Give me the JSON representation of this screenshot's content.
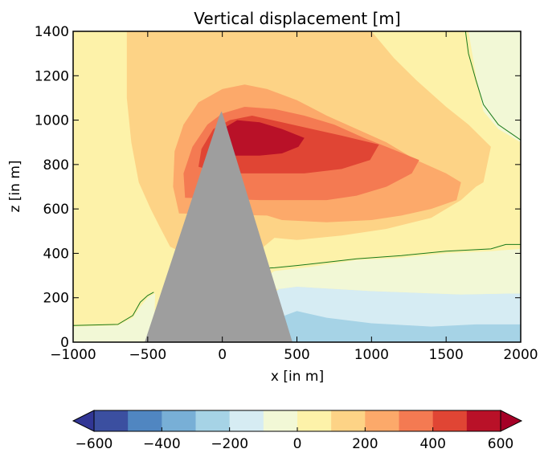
{
  "chart_data": {
    "type": "heatmap",
    "title": "Vertical displacement [m]",
    "xlabel": "x [in m]",
    "ylabel": "z [in m]",
    "xlim": [
      -1000,
      2000
    ],
    "ylim": [
      0,
      1400
    ],
    "xticks": [
      -1000,
      -500,
      0,
      500,
      1000,
      1500,
      2000
    ],
    "xtick_labels": [
      "−1000",
      "−500",
      "0",
      "500",
      "1000",
      "1500",
      "2000"
    ],
    "yticks": [
      0,
      200,
      400,
      600,
      800,
      1000,
      1200,
      1400
    ],
    "ytick_labels": [
      "0",
      "200",
      "400",
      "600",
      "800",
      "1000",
      "1200",
      "1400"
    ],
    "colorbar": {
      "levels": [
        -600,
        -500,
        -400,
        -300,
        -200,
        -100,
        0,
        100,
        200,
        300,
        400,
        500,
        600
      ],
      "colors": [
        "#3b4fa0",
        "#5086c1",
        "#78afd6",
        "#a6d3e6",
        "#d6ecf3",
        "#f2f8d6",
        "#fdf2a9",
        "#fdd386",
        "#fca96a",
        "#f47a52",
        "#e04534",
        "#b91128"
      ],
      "extend_low_color": "#313695",
      "extend_high_color": "#a50026",
      "tick_values": [
        -600,
        -400,
        -200,
        0,
        200,
        400,
        600
      ],
      "tick_labels": [
        "−600",
        "−400",
        "−200",
        "0",
        "200",
        "400",
        "600"
      ],
      "extend": "both"
    },
    "background_level_color": "#fdf2a9",
    "regions": [
      {
        "level_range": [
          -200,
          -100
        ],
        "color": "#d6ecf3",
        "polygon": [
          [
            -1000,
            0
          ],
          [
            2000,
            0
          ],
          [
            2000,
            220
          ],
          [
            1600,
            215
          ],
          [
            1000,
            230
          ],
          [
            500,
            250
          ],
          [
            380,
            240
          ],
          [
            300,
            200
          ],
          [
            300,
            0
          ]
        ]
      },
      {
        "level_range": [
          -300,
          -200
        ],
        "color": "#a6d3e6",
        "polygon": [
          [
            360,
            0
          ],
          [
            2000,
            0
          ],
          [
            2000,
            80
          ],
          [
            1700,
            80
          ],
          [
            1400,
            70
          ],
          [
            1000,
            85
          ],
          [
            700,
            110
          ],
          [
            500,
            140
          ],
          [
            420,
            120
          ],
          [
            360,
            60
          ]
        ]
      },
      {
        "level_range": [
          -100,
          0
        ],
        "color": "#f2f8d6",
        "polygon": [
          [
            -1000,
            0
          ],
          [
            -1000,
            70
          ],
          [
            -700,
            75
          ],
          [
            -600,
            110
          ],
          [
            -550,
            160
          ],
          [
            -500,
            200
          ],
          [
            -450,
            220
          ],
          [
            -460,
            0
          ]
        ]
      },
      {
        "level_range": [
          -100,
          0
        ],
        "color": "#f2f8d6",
        "polygon": [
          [
            2000,
            0
          ],
          [
            2000,
            420
          ],
          [
            1800,
            410
          ],
          [
            1500,
            400
          ],
          [
            1200,
            380
          ],
          [
            900,
            370
          ],
          [
            600,
            340
          ],
          [
            350,
            320
          ],
          [
            260,
            280
          ],
          [
            300,
            240
          ],
          [
            380,
            240
          ],
          [
            500,
            250
          ],
          [
            1000,
            230
          ],
          [
            1600,
            215
          ],
          [
            2000,
            220
          ]
        ]
      },
      {
        "level_range": [
          -100,
          0
        ],
        "color": "#f2f8d6",
        "polygon": [
          [
            1650,
            1400
          ],
          [
            2000,
            1400
          ],
          [
            2000,
            900
          ],
          [
            1850,
            960
          ],
          [
            1750,
            1040
          ],
          [
            1700,
            1200
          ]
        ]
      },
      {
        "level_range": [
          100,
          200
        ],
        "color": "#fdd386",
        "polygon": [
          [
            -640,
            1400
          ],
          [
            1000,
            1400
          ],
          [
            1150,
            1280
          ],
          [
            1300,
            1180
          ],
          [
            1500,
            1060
          ],
          [
            1650,
            980
          ],
          [
            1800,
            880
          ],
          [
            1750,
            720
          ],
          [
            1700,
            700
          ],
          [
            1600,
            640
          ],
          [
            1400,
            560
          ],
          [
            1100,
            510
          ],
          [
            800,
            480
          ],
          [
            500,
            460
          ],
          [
            350,
            470
          ],
          [
            260,
            420
          ],
          [
            200,
            380
          ],
          [
            150,
            360
          ],
          [
            -200,
            380
          ],
          [
            -350,
            430
          ],
          [
            -420,
            520
          ],
          [
            -480,
            600
          ],
          [
            -560,
            720
          ],
          [
            -610,
            900
          ],
          [
            -640,
            1100
          ]
        ]
      },
      {
        "level_range": [
          200,
          300
        ],
        "color": "#fca96a",
        "polygon": [
          [
            -290,
            580
          ],
          [
            -330,
            700
          ],
          [
            -320,
            860
          ],
          [
            -260,
            980
          ],
          [
            -160,
            1080
          ],
          [
            0,
            1140
          ],
          [
            150,
            1160
          ],
          [
            300,
            1140
          ],
          [
            500,
            1090
          ],
          [
            700,
            1020
          ],
          [
            900,
            960
          ],
          [
            1100,
            900
          ],
          [
            1300,
            820
          ],
          [
            1500,
            760
          ],
          [
            1600,
            720
          ],
          [
            1570,
            640
          ],
          [
            1400,
            600
          ],
          [
            1200,
            570
          ],
          [
            1000,
            550
          ],
          [
            700,
            540
          ],
          [
            400,
            550
          ],
          [
            300,
            570
          ]
        ]
      },
      {
        "level_range": [
          300,
          400
        ],
        "color": "#f47a52",
        "polygon": [
          [
            -250,
            650
          ],
          [
            -260,
            760
          ],
          [
            -200,
            880
          ],
          [
            -100,
            980
          ],
          [
            0,
            1030
          ],
          [
            150,
            1060
          ],
          [
            350,
            1050
          ],
          [
            550,
            1020
          ],
          [
            750,
            980
          ],
          [
            950,
            920
          ],
          [
            1100,
            880
          ],
          [
            1320,
            820
          ],
          [
            1270,
            760
          ],
          [
            1100,
            700
          ],
          [
            900,
            660
          ],
          [
            700,
            640
          ],
          [
            500,
            640
          ],
          [
            250,
            640
          ]
        ]
      },
      {
        "level_range": [
          400,
          500
        ],
        "color": "#e04534",
        "polygon": [
          [
            -160,
            790
          ],
          [
            -140,
            870
          ],
          [
            -60,
            960
          ],
          [
            50,
            1000
          ],
          [
            200,
            1020
          ],
          [
            400,
            990
          ],
          [
            600,
            960
          ],
          [
            800,
            930
          ],
          [
            1050,
            890
          ],
          [
            990,
            820
          ],
          [
            800,
            780
          ],
          [
            550,
            760
          ],
          [
            250,
            760
          ],
          [
            0,
            760
          ]
        ]
      },
      {
        "level_range": [
          500,
          600
        ],
        "color": "#b91128",
        "polygon": [
          [
            -60,
            860
          ],
          [
            0,
            960
          ],
          [
            100,
            1000
          ],
          [
            250,
            990
          ],
          [
            400,
            960
          ],
          [
            550,
            920
          ],
          [
            510,
            880
          ],
          [
            400,
            850
          ],
          [
            250,
            840
          ],
          [
            60,
            840
          ]
        ]
      }
    ],
    "zero_contours": [
      [
        [
          -1000,
          75
        ],
        [
          -700,
          80
        ],
        [
          -600,
          120
        ],
        [
          -550,
          180
        ],
        [
          -500,
          210
        ],
        [
          -460,
          225
        ]
      ],
      [
        [
          -100,
          270
        ],
        [
          50,
          300
        ],
        [
          200,
          330
        ],
        [
          350,
          335
        ],
        [
          500,
          345
        ],
        [
          700,
          360
        ],
        [
          900,
          375
        ],
        [
          1200,
          390
        ],
        [
          1500,
          410
        ],
        [
          1800,
          420
        ],
        [
          1900,
          440
        ],
        [
          2000,
          440
        ]
      ],
      [
        [
          1630,
          1400
        ],
        [
          1650,
          1300
        ],
        [
          1700,
          1180
        ],
        [
          1750,
          1070
        ],
        [
          1850,
          980
        ],
        [
          2000,
          910
        ]
      ]
    ],
    "mountain": {
      "polygon": [
        [
          -520,
          0
        ],
        [
          -20,
          1020
        ],
        [
          -5,
          1040
        ],
        [
          10,
          1010
        ],
        [
          470,
          0
        ]
      ],
      "color": "#9e9e9e"
    }
  }
}
